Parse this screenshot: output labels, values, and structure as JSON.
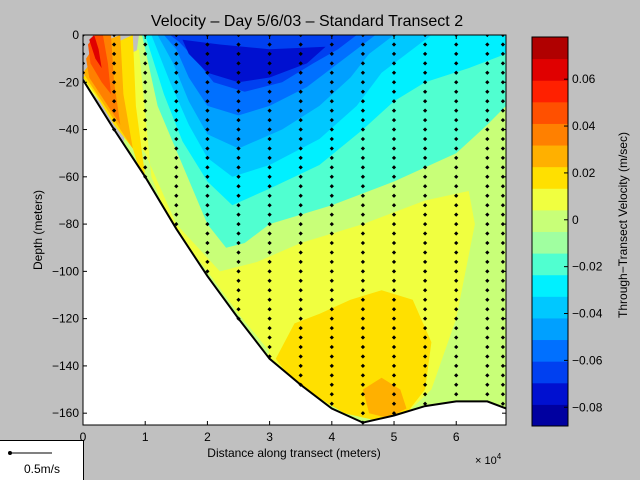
{
  "chart_data": {
    "type": "heatmap",
    "title": "Velocity – Day 5/6/03 – Standard Transect 2",
    "xlabel": "Distance along transect (meters)",
    "x_multiplier": "× 10",
    "x_multiplier_exp": "4",
    "ylabel": "Depth (meters)",
    "xlim": [
      0,
      6.8
    ],
    "ylim": [
      -165,
      0
    ],
    "x_ticks": [
      {
        "v": 0,
        "label": "0"
      },
      {
        "v": 1,
        "label": "1"
      },
      {
        "v": 2,
        "label": "2"
      },
      {
        "v": 3,
        "label": "3"
      },
      {
        "v": 4,
        "label": "4"
      },
      {
        "v": 5,
        "label": "5"
      },
      {
        "v": 6,
        "label": "6"
      }
    ],
    "y_ticks": [
      {
        "v": 0,
        "label": "0"
      },
      {
        "v": -20,
        "label": "−20"
      },
      {
        "v": -40,
        "label": "−40"
      },
      {
        "v": -60,
        "label": "−60"
      },
      {
        "v": -80,
        "label": "−80"
      },
      {
        "v": -100,
        "label": "−100"
      },
      {
        "v": -120,
        "label": "−120"
      },
      {
        "v": -140,
        "label": "−140"
      },
      {
        "v": -160,
        "label": "−160"
      }
    ],
    "colorbar": {
      "label": "Through−Transect Velocity (m/sec)",
      "range": [
        -0.088,
        0.078
      ],
      "ticks": [
        {
          "v": 0.06,
          "label": "0.06"
        },
        {
          "v": 0.04,
          "label": "0.04"
        },
        {
          "v": 0.02,
          "label": "0.02"
        },
        {
          "v": 0,
          "label": "0"
        },
        {
          "v": -0.02,
          "label": "−0.02"
        },
        {
          "v": -0.04,
          "label": "−0.04"
        },
        {
          "v": -0.06,
          "label": "−0.06"
        },
        {
          "v": -0.08,
          "label": "−0.08"
        }
      ],
      "colors": [
        "#0000a0",
        "#0010d0",
        "#0040f0",
        "#0070ff",
        "#00a0ff",
        "#00c8ff",
        "#00f0ff",
        "#50ffd0",
        "#a0ffa0",
        "#c8ff78",
        "#f0ff40",
        "#ffe000",
        "#ffb000",
        "#ff8000",
        "#ff5000",
        "#ff2000",
        "#e00000",
        "#b00000"
      ]
    },
    "bottom_profile": [
      [
        0,
        -19
      ],
      [
        0.5,
        -40
      ],
      [
        1,
        -60
      ],
      [
        1.5,
        -82
      ],
      [
        2,
        -102
      ],
      [
        2.5,
        -120
      ],
      [
        3,
        -137
      ],
      [
        3.5,
        -148
      ],
      [
        4,
        -158
      ],
      [
        4.5,
        -164
      ],
      [
        5,
        -161
      ],
      [
        5.5,
        -157
      ],
      [
        6,
        -155
      ],
      [
        6.5,
        -155
      ],
      [
        6.8,
        -158
      ]
    ],
    "sample_columns": [
      {
        "x": 0,
        "bottom": -19
      },
      {
        "x": 0.5,
        "bottom": -40
      },
      {
        "x": 1,
        "bottom": -60
      },
      {
        "x": 1.5,
        "bottom": -82
      },
      {
        "x": 2,
        "bottom": -102
      },
      {
        "x": 2.5,
        "bottom": -120
      },
      {
        "x": 3,
        "bottom": -137
      },
      {
        "x": 3.5,
        "bottom": -148
      },
      {
        "x": 4,
        "bottom": -158
      },
      {
        "x": 4.5,
        "bottom": -164
      },
      {
        "x": 5,
        "bottom": -161
      },
      {
        "x": 5.5,
        "bottom": -157
      },
      {
        "x": 6,
        "bottom": -155
      },
      {
        "x": 6.5,
        "bottom": -155
      },
      {
        "x": 6.75,
        "bottom": -158
      }
    ],
    "sample_spacing_m": 4,
    "field_regions": [
      {
        "level": -0.005,
        "poly": [
          [
            0.9,
            0
          ],
          [
            6.8,
            0
          ],
          [
            6.8,
            -165
          ],
          [
            0,
            -165
          ]
        ]
      },
      {
        "level": -0.015,
        "poly": [
          [
            0.95,
            0
          ],
          [
            6.8,
            0
          ],
          [
            6.8,
            -30
          ],
          [
            6.5,
            -38
          ],
          [
            6,
            -50
          ],
          [
            5,
            -62
          ],
          [
            4,
            -72
          ],
          [
            3,
            -80
          ],
          [
            2.6,
            -88
          ],
          [
            2.3,
            -90
          ],
          [
            2,
            -80
          ],
          [
            1.6,
            -55
          ],
          [
            1.2,
            -30
          ]
        ]
      },
      {
        "level": -0.025,
        "poly": [
          [
            1,
            0
          ],
          [
            6.8,
            0
          ],
          [
            6.8,
            -8
          ],
          [
            6.2,
            -14
          ],
          [
            5.5,
            -20
          ],
          [
            5,
            -28
          ],
          [
            4.5,
            -40
          ],
          [
            3.8,
            -55
          ],
          [
            3,
            -65
          ],
          [
            2.4,
            -72
          ],
          [
            2,
            -62
          ],
          [
            1.6,
            -45
          ],
          [
            1.3,
            -25
          ]
        ]
      },
      {
        "level": -0.035,
        "poly": [
          [
            1.1,
            0
          ],
          [
            5.6,
            0
          ],
          [
            5.2,
            -8
          ],
          [
            4.8,
            -16
          ],
          [
            4.4,
            -30
          ],
          [
            3.8,
            -44
          ],
          [
            3,
            -55
          ],
          [
            2.4,
            -60
          ],
          [
            2,
            -52
          ],
          [
            1.7,
            -38
          ],
          [
            1.4,
            -20
          ]
        ]
      },
      {
        "level": -0.045,
        "poly": [
          [
            1.2,
            0
          ],
          [
            5,
            0
          ],
          [
            4.6,
            -8
          ],
          [
            4.3,
            -18
          ],
          [
            3.8,
            -30
          ],
          [
            3.2,
            -40
          ],
          [
            2.5,
            -48
          ],
          [
            2,
            -42
          ],
          [
            1.7,
            -28
          ],
          [
            1.45,
            -12
          ]
        ]
      },
      {
        "level": -0.055,
        "poly": [
          [
            1.3,
            0
          ],
          [
            4.7,
            0
          ],
          [
            4.4,
            -6
          ],
          [
            4,
            -14
          ],
          [
            3.6,
            -22
          ],
          [
            3,
            -30
          ],
          [
            2.5,
            -34
          ],
          [
            2,
            -30
          ],
          [
            1.7,
            -18
          ],
          [
            1.5,
            -6
          ]
        ]
      },
      {
        "level": -0.065,
        "poly": [
          [
            1.4,
            0
          ],
          [
            4.4,
            0
          ],
          [
            4.1,
            -6
          ],
          [
            3.7,
            -12
          ],
          [
            3.2,
            -20
          ],
          [
            2.6,
            -24
          ],
          [
            2.1,
            -20
          ],
          [
            1.8,
            -10
          ],
          [
            1.55,
            -3
          ]
        ]
      },
      {
        "level": -0.075,
        "poly": [
          [
            1.6,
            -2
          ],
          [
            2.2,
            -4
          ],
          [
            3,
            -6
          ],
          [
            3.9,
            -5
          ],
          [
            3.6,
            -12
          ],
          [
            3,
            -18
          ],
          [
            2.5,
            -20
          ],
          [
            2,
            -16
          ],
          [
            1.7,
            -8
          ]
        ]
      },
      {
        "level": 0.005,
        "poly": [
          [
            0,
            -20
          ],
          [
            0.6,
            -10
          ],
          [
            0.9,
            -6
          ],
          [
            1.1,
            -60
          ],
          [
            1.4,
            -80
          ],
          [
            2,
            -100
          ],
          [
            2.5,
            -118
          ],
          [
            3,
            -134
          ],
          [
            2.6,
            -150
          ],
          [
            3,
            -146
          ],
          [
            3.4,
            -150
          ],
          [
            3.8,
            -155
          ],
          [
            4.5,
            -162
          ],
          [
            5.2,
            -160
          ],
          [
            5.6,
            -150
          ],
          [
            6,
            -120
          ],
          [
            6.3,
            -80
          ],
          [
            6.2,
            -66
          ],
          [
            5.5,
            -70
          ],
          [
            4.5,
            -80
          ],
          [
            3.5,
            -88
          ],
          [
            2.8,
            -96
          ],
          [
            2.2,
            -100
          ],
          [
            1.5,
            -80
          ],
          [
            1,
            -50
          ]
        ]
      },
      {
        "level": 0.015,
        "poly": [
          [
            0,
            -18
          ],
          [
            0.55,
            -3
          ],
          [
            0.8,
            0
          ],
          [
            0.85,
            -30
          ],
          [
            1,
            -60
          ],
          [
            1.2,
            -70
          ],
          [
            1,
            -65
          ],
          [
            0.8,
            -48
          ],
          [
            0.5,
            -38
          ],
          [
            0.2,
            -25
          ]
        ]
      },
      {
        "level": 0.015,
        "poly": [
          [
            3.1,
            -137
          ],
          [
            3.4,
            -122
          ],
          [
            3.8,
            -118
          ],
          [
            4.3,
            -112
          ],
          [
            4.8,
            -108
          ],
          [
            5.3,
            -112
          ],
          [
            5.6,
            -130
          ],
          [
            5.5,
            -150
          ],
          [
            5.2,
            -160
          ],
          [
            4.7,
            -163
          ],
          [
            4.2,
            -160
          ],
          [
            3.7,
            -152
          ],
          [
            3.3,
            -144
          ]
        ]
      },
      {
        "level": 0.025,
        "poly": [
          [
            0,
            -16
          ],
          [
            0.4,
            -2
          ],
          [
            0.6,
            0
          ],
          [
            0.65,
            -25
          ],
          [
            0.8,
            -48
          ],
          [
            0.6,
            -40
          ],
          [
            0.3,
            -28
          ]
        ]
      },
      {
        "level": 0.025,
        "poly": [
          [
            4.5,
            -150
          ],
          [
            4.8,
            -145
          ],
          [
            5.1,
            -150
          ],
          [
            5.2,
            -158
          ],
          [
            4.9,
            -162
          ],
          [
            4.6,
            -160
          ]
        ]
      },
      {
        "level": 0.035,
        "poly": [
          [
            0.05,
            -10
          ],
          [
            0.3,
            0
          ],
          [
            0.45,
            0
          ],
          [
            0.5,
            -20
          ],
          [
            0.6,
            -38
          ],
          [
            0.35,
            -28
          ],
          [
            0.1,
            -18
          ]
        ]
      },
      {
        "level": 0.045,
        "poly": [
          [
            0.08,
            -4
          ],
          [
            0.2,
            0
          ],
          [
            0.32,
            0
          ],
          [
            0.4,
            -12
          ],
          [
            0.45,
            -25
          ],
          [
            0.3,
            -20
          ],
          [
            0.12,
            -12
          ]
        ]
      },
      {
        "level": 0.06,
        "poly": [
          [
            0.1,
            -2
          ],
          [
            0.18,
            0
          ],
          [
            0.25,
            -6
          ],
          [
            0.3,
            -14
          ],
          [
            0.2,
            -10
          ]
        ]
      }
    ],
    "vector_key_label": "0.5m/s"
  }
}
